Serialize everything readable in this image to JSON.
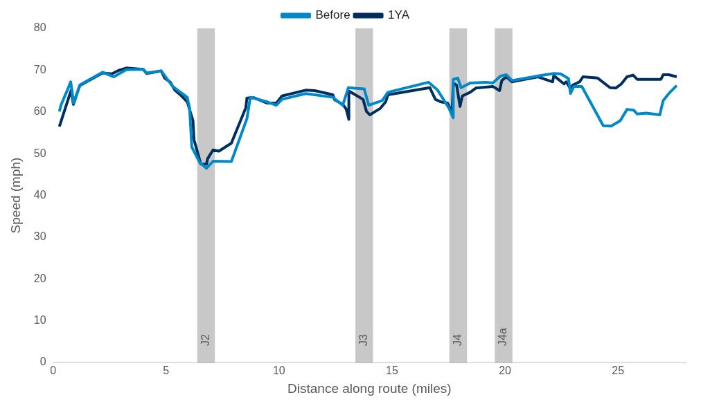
{
  "chart_data": {
    "type": "line",
    "xlabel": "Distance along route (miles)",
    "ylabel": "Speed (mph)",
    "xlim": [
      0,
      28
    ],
    "xticks": [
      0,
      5,
      10,
      15,
      20,
      25
    ],
    "ylim": [
      0,
      80
    ],
    "yticks": [
      0,
      10,
      20,
      30,
      40,
      50,
      60,
      70,
      80
    ],
    "grid": false,
    "legend": "top",
    "marker": "none",
    "line_style": "solid",
    "bands": [
      {
        "axis": "x",
        "from": 6.38,
        "to": 7.16,
        "label": "J2",
        "color": "#c8c8c8"
      },
      {
        "axis": "x",
        "from": 13.38,
        "to": 14.16,
        "label": "J3",
        "color": "#c8c8c8"
      },
      {
        "axis": "x",
        "from": 17.54,
        "to": 18.32,
        "label": "J4",
        "color": "#c8c8c8"
      },
      {
        "axis": "x",
        "from": 19.55,
        "to": 20.33,
        "label": "J4a",
        "color": "#c8c8c8"
      }
    ],
    "series": [
      {
        "name": "Before",
        "color": "#0089c9",
        "x": [
          0.28,
          0.35,
          0.7,
          0.78,
          0.85,
          0.9,
          1.2,
          2.19,
          2.69,
          3.24,
          3.99,
          4.14,
          4.79,
          5.29,
          5.94,
          6.04,
          6.14,
          6.49,
          6.79,
          7.08,
          7.89,
          8.58,
          8.73,
          9.48,
          9.88,
          10.13,
          11.18,
          12.38,
          12.82,
          13.07,
          13.77,
          13.97,
          14.57,
          14.82,
          16.62,
          17.02,
          17.51,
          17.71,
          17.71,
          17.91,
          18.06,
          18.46,
          19.16,
          19.46,
          19.81,
          20.06,
          20.31,
          21.46,
          22.16,
          22.46,
          22.81,
          22.9,
          23.05,
          23.4,
          24.35,
          24.7,
          25.1,
          25.4,
          25.7,
          25.85,
          26.25,
          26.85,
          27.0,
          27.25,
          27.6
        ],
        "values": [
          60.1,
          61.6,
          66.1,
          67.2,
          64.7,
          62.1,
          66.5,
          69.5,
          68.4,
          70.1,
          70.2,
          69.3,
          69.8,
          66.1,
          63.5,
          61.0,
          51.6,
          47.9,
          46.5,
          48.2,
          48.1,
          58.4,
          63.5,
          62.4,
          61.6,
          63.0,
          64.4,
          63.5,
          61.6,
          65.8,
          65.5,
          61.6,
          62.7,
          64.7,
          67.1,
          65.2,
          61.0,
          58.6,
          67.8,
          68.1,
          65.8,
          66.9,
          67.1,
          66.9,
          68.6,
          68.9,
          67.5,
          68.6,
          69.2,
          69.1,
          68.0,
          64.4,
          66.1,
          66.1,
          56.7,
          56.6,
          57.9,
          60.6,
          60.4,
          59.5,
          59.7,
          59.3,
          62.7,
          64.4,
          66.3
        ]
      },
      {
        "name": "1YA",
        "color": "#002f5f",
        "x": [
          0.28,
          0.8,
          0.9,
          1.18,
          2.19,
          2.6,
          2.89,
          3.24,
          3.99,
          4.14,
          4.79,
          4.94,
          5.19,
          5.39,
          5.69,
          5.94,
          6.19,
          6.24,
          6.54,
          6.79,
          6.84,
          7.08,
          7.34,
          7.89,
          8.53,
          8.58,
          8.88,
          9.48,
          9.88,
          10.13,
          11.18,
          11.58,
          12.38,
          12.46,
          12.82,
          12.97,
          13.09,
          13.09,
          13.72,
          13.87,
          14.02,
          14.47,
          14.72,
          14.82,
          16.67,
          16.92,
          17.16,
          17.46,
          17.66,
          17.71,
          17.86,
          18.01,
          18.11,
          18.46,
          18.71,
          19.46,
          19.76,
          19.86,
          20.06,
          20.31,
          21.46,
          22.11,
          22.16,
          22.36,
          22.61,
          22.71,
          22.9,
          23.0,
          23.3,
          23.45,
          24.1,
          24.65,
          24.9,
          25.15,
          25.4,
          25.67,
          25.85,
          26.9,
          27.0,
          27.25,
          27.6
        ],
        "values": [
          56.5,
          65.2,
          61.8,
          66.3,
          69.3,
          69.1,
          69.9,
          70.5,
          70.2,
          69.2,
          69.8,
          68.1,
          67.1,
          65.2,
          63.8,
          62.4,
          57.9,
          53.3,
          47.5,
          47.5,
          48.8,
          50.9,
          50.6,
          52.5,
          61.0,
          63.3,
          63.4,
          62.1,
          62.1,
          63.8,
          65.2,
          65.1,
          64.1,
          62.9,
          61.8,
          60.7,
          58.2,
          65.0,
          63.0,
          60.1,
          59.3,
          60.8,
          62.4,
          64.1,
          65.8,
          63.0,
          62.4,
          62.1,
          59.9,
          66.9,
          66.4,
          61.3,
          63.8,
          64.7,
          65.7,
          66.1,
          65.1,
          67.5,
          68.4,
          67.2,
          68.4,
          67.2,
          68.7,
          67.8,
          66.7,
          67.2,
          65.5,
          66.4,
          67.2,
          68.4,
          68.1,
          65.8,
          65.7,
          66.7,
          68.4,
          68.8,
          67.8,
          67.8,
          68.9,
          68.9,
          68.4
        ]
      }
    ]
  }
}
